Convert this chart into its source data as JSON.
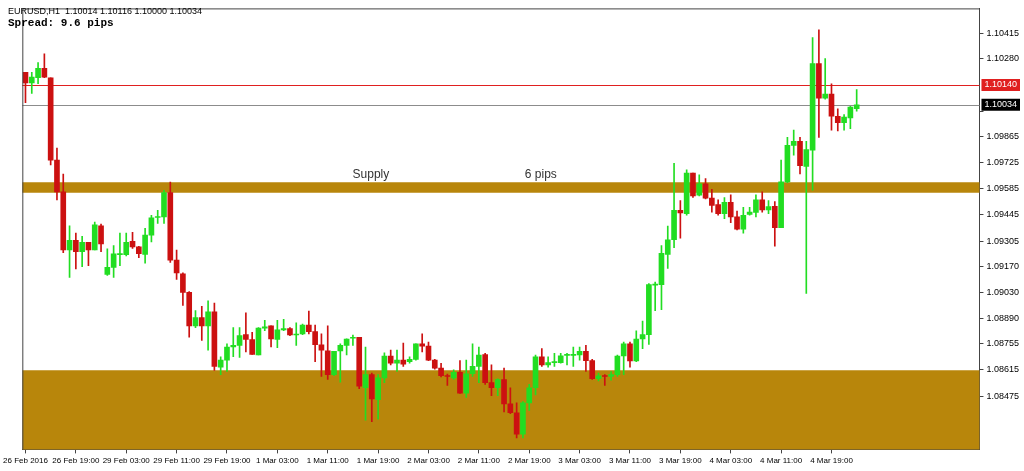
{
  "chart_data": {
    "type": "candlestick",
    "title": "EURUSD,H1  1.10014 1.10116 1.10000 1.10034",
    "subtitle": "Spread: 9.6 pips",
    "categories": [
      "26 Feb 2016",
      null,
      null,
      null,
      null,
      null,
      null,
      null,
      "26 Feb 19:00",
      null,
      null,
      null,
      null,
      null,
      null,
      null,
      "29 Feb 03:00",
      null,
      null,
      null,
      null,
      null,
      null,
      null,
      "29 Feb 11:00",
      null,
      null,
      null,
      null,
      null,
      null,
      null,
      "29 Feb 19:00",
      null,
      null,
      null,
      null,
      null,
      null,
      null,
      "1 Mar 03:00",
      null,
      null,
      null,
      null,
      null,
      null,
      null,
      "1 Mar 11:00",
      null,
      null,
      null,
      null,
      null,
      null,
      null,
      "1 Mar 19:00",
      null,
      null,
      null,
      null,
      null,
      null,
      null,
      "2 Mar 03:00",
      null,
      null,
      null,
      null,
      null,
      null,
      null,
      "2 Mar 11:00",
      null,
      null,
      null,
      null,
      null,
      null,
      null,
      "2 Mar 19:00",
      null,
      null,
      null,
      null,
      null,
      null,
      null,
      "3 Mar 03:00",
      null,
      null,
      null,
      null,
      null,
      null,
      null,
      "3 Mar 11:00",
      null,
      null,
      null,
      null,
      null,
      null,
      null,
      "3 Mar 19:00",
      null,
      null,
      null,
      null,
      null,
      null,
      null,
      "4 Mar 03:00",
      null,
      null,
      null,
      null,
      null,
      null,
      null,
      "4 Mar 11:00",
      null,
      null,
      null,
      null,
      null,
      null,
      null,
      "4 Mar 19:00",
      null,
      null,
      null,
      null,
      null,
      null,
      null,
      null,
      null,
      null,
      null,
      null,
      null,
      null,
      null,
      null,
      null,
      null,
      null,
      null,
      null,
      null,
      null
    ],
    "ohlc": [
      [
        1.10208,
        1.10208,
        1.10046,
        1.10151
      ],
      [
        1.10151,
        1.10208,
        1.10095,
        1.10182
      ],
      [
        1.10179,
        1.1026,
        1.10147,
        1.10229
      ],
      [
        1.10229,
        1.10307,
        1.10179,
        1.10182
      ],
      [
        1.10179,
        1.10179,
        1.09712,
        1.09738
      ],
      [
        1.09738,
        1.09803,
        1.09525,
        1.09568
      ],
      [
        1.09568,
        1.09664,
        1.09243,
        1.09257
      ],
      [
        1.09257,
        1.09387,
        1.0911,
        1.09309
      ],
      [
        1.09309,
        1.09347,
        1.09156,
        1.09248
      ],
      [
        1.09248,
        1.0933,
        1.09168,
        1.09298
      ],
      [
        1.09298,
        1.09298,
        1.09173,
        1.09257
      ],
      [
        1.09257,
        1.09406,
        1.09257,
        1.09392
      ],
      [
        1.09387,
        1.09396,
        1.09248,
        1.0929
      ],
      [
        1.09126,
        1.09263,
        1.09121,
        1.09164
      ],
      [
        1.09164,
        1.09281,
        1.0911,
        1.09237
      ],
      [
        1.09232,
        1.09347,
        1.09173,
        1.09234
      ],
      [
        1.09232,
        1.09347,
        1.09225,
        1.09298
      ],
      [
        1.09304,
        1.09352,
        1.09265,
        1.09274
      ],
      [
        1.09274,
        1.09277,
        1.09216,
        1.09237
      ],
      [
        1.09234,
        1.09373,
        1.09187,
        1.09337
      ],
      [
        1.09337,
        1.09443,
        1.093,
        1.09429
      ],
      [
        1.09431,
        1.09469,
        1.09399,
        1.09434
      ],
      [
        1.09434,
        1.09577,
        1.09399,
        1.09564
      ],
      [
        1.09564,
        1.0962,
        1.0919,
        1.09203
      ],
      [
        1.09203,
        1.09257,
        1.091,
        1.09135
      ],
      [
        1.0913,
        1.09135,
        1.08961,
        1.0903
      ],
      [
        1.0903,
        1.09034,
        1.0879,
        1.08851
      ],
      [
        1.08851,
        1.08933,
        1.08842,
        1.08895
      ],
      [
        1.08895,
        1.08955,
        1.08773,
        1.08851
      ],
      [
        1.08851,
        1.08985,
        1.08721,
        1.08926
      ],
      [
        1.08926,
        1.08973,
        1.08613,
        1.08634
      ],
      [
        1.0863,
        1.08686,
        1.0859,
        1.08668
      ],
      [
        1.08668,
        1.08755,
        1.08607,
        1.08738
      ],
      [
        1.08738,
        1.08842,
        1.08686,
        1.08747
      ],
      [
        1.08747,
        1.08842,
        1.08682,
        1.08799
      ],
      [
        1.08804,
        1.08921,
        1.08712,
        1.08778
      ],
      [
        1.08778,
        1.08816,
        1.08698,
        1.08698
      ],
      [
        1.08695,
        1.08842,
        1.08695,
        1.08839
      ],
      [
        1.08839,
        1.08881,
        1.08825,
        1.08846
      ],
      [
        1.08851,
        1.08851,
        1.08738,
        1.08781
      ],
      [
        1.08778,
        1.08881,
        1.08735,
        1.0883
      ],
      [
        1.0883,
        1.08886,
        1.08825,
        1.08837
      ],
      [
        1.08837,
        1.08842,
        1.08799,
        1.08802
      ],
      [
        1.08802,
        1.08868,
        1.08747,
        1.08806
      ],
      [
        1.08808,
        1.0886,
        1.08804,
        1.08855
      ],
      [
        1.08855,
        1.0893,
        1.08808,
        1.0882
      ],
      [
        1.0882,
        1.08855,
        1.0866,
        1.0875
      ],
      [
        1.0875,
        1.08808,
        1.08581,
        1.08721
      ],
      [
        1.08717,
        1.08851,
        1.08564,
        1.0859
      ],
      [
        1.0859,
        1.08715,
        1.08584,
        1.08715
      ],
      [
        1.08717,
        1.08755,
        1.0855,
        1.08747
      ],
      [
        1.08747,
        1.08782,
        1.08695,
        1.08781
      ],
      [
        1.08785,
        1.08802,
        1.08747,
        1.08788
      ],
      [
        1.0879,
        1.0879,
        1.08515,
        1.08529
      ],
      [
        1.0852,
        1.08738,
        1.08347,
        1.0859
      ],
      [
        1.0859,
        1.08599,
        1.08338,
        1.0846
      ],
      [
        1.08456,
        1.0859,
        1.08352,
        1.08573
      ],
      [
        1.08573,
        1.08707,
        1.08547,
        1.0869
      ],
      [
        1.0869,
        1.08721,
        1.08642,
        1.08651
      ],
      [
        1.08651,
        1.08721,
        1.08607,
        1.08668
      ],
      [
        1.08668,
        1.08759,
        1.08634,
        1.08646
      ],
      [
        1.0866,
        1.08686,
        1.08651,
        1.08672
      ],
      [
        1.08672,
        1.08755,
        1.08668,
        1.08755
      ],
      [
        1.08755,
        1.08808,
        1.08712,
        1.08743
      ],
      [
        1.08743,
        1.08764,
        1.08665,
        1.08668
      ],
      [
        1.08668,
        1.08672,
        1.0862,
        1.08625
      ],
      [
        1.08625,
        1.08651,
        1.08578,
        1.08584
      ],
      [
        1.08584,
        1.08593,
        1.08533,
        1.0858
      ],
      [
        1.08573,
        1.08616,
        1.08564,
        1.08603
      ],
      [
        1.08603,
        1.08665,
        1.08489,
        1.08491
      ],
      [
        1.08491,
        1.08668,
        1.08468,
        1.08595
      ],
      [
        1.08595,
        1.08755,
        1.08581,
        1.08634
      ],
      [
        1.08634,
        1.08738,
        1.08547,
        1.08695
      ],
      [
        1.08698,
        1.08704,
        1.08538,
        1.08547
      ],
      [
        1.08547,
        1.08642,
        1.08477,
        1.0852
      ],
      [
        1.0852,
        1.08568,
        1.08477,
        1.08564
      ],
      [
        1.08564,
        1.08625,
        1.0839,
        1.08434
      ],
      [
        1.08434,
        1.0852,
        1.08381,
        1.08386
      ],
      [
        1.08386,
        1.08439,
        1.08251,
        1.08272
      ],
      [
        1.08272,
        1.08446,
        1.08251,
        1.08439
      ],
      [
        1.08439,
        1.08538,
        1.08399,
        1.0852
      ],
      [
        1.0852,
        1.08695,
        1.08481,
        1.08686
      ],
      [
        1.08686,
        1.08729,
        1.08634,
        1.08642
      ],
      [
        1.08642,
        1.08686,
        1.0863,
        1.08654
      ],
      [
        1.08654,
        1.08704,
        1.08634,
        1.08656
      ],
      [
        1.08654,
        1.08704,
        1.08651,
        1.08691
      ],
      [
        1.08693,
        1.08704,
        1.08642,
        1.08696
      ],
      [
        1.08693,
        1.08738,
        1.08634,
        1.08696
      ],
      [
        1.08695,
        1.08738,
        1.08668,
        1.08715
      ],
      [
        1.08715,
        1.08747,
        1.08607,
        1.08665
      ],
      [
        1.08665,
        1.08672,
        1.08564,
        1.08568
      ],
      [
        1.08568,
        1.08599,
        1.08556,
        1.08584
      ],
      [
        1.08582,
        1.0859,
        1.08533,
        1.0858
      ],
      [
        1.08581,
        1.08607,
        1.08561,
        1.0859
      ],
      [
        1.0859,
        1.08695,
        1.08581,
        1.0869
      ],
      [
        1.0869,
        1.08764,
        1.0859,
        1.08755
      ],
      [
        1.08755,
        1.08764,
        1.0863,
        1.08663
      ],
      [
        1.08663,
        1.08825,
        1.0866,
        1.08781
      ],
      [
        1.08781,
        1.08877,
        1.08729,
        1.08804
      ],
      [
        1.08804,
        1.09077,
        1.08752,
        1.09072
      ],
      [
        1.09069,
        1.09086,
        1.08933,
        1.09074
      ],
      [
        1.09072,
        1.09281,
        1.08938,
        1.09239
      ],
      [
        1.09234,
        1.09385,
        1.09159,
        1.09312
      ],
      [
        1.09312,
        1.09721,
        1.09269,
        1.09469
      ],
      [
        1.09469,
        1.09521,
        1.09321,
        1.09455
      ],
      [
        1.09451,
        1.09686,
        1.09443,
        1.09669
      ],
      [
        1.09669,
        1.09669,
        1.09538,
        1.09547
      ],
      [
        1.09551,
        1.0966,
        1.09547,
        1.09611
      ],
      [
        1.09611,
        1.09639,
        1.0953,
        1.09535
      ],
      [
        1.09535,
        1.09582,
        1.0946,
        1.09495
      ],
      [
        1.095,
        1.09525,
        1.09443,
        1.09451
      ],
      [
        1.09451,
        1.09538,
        1.09425,
        1.09512
      ],
      [
        1.09512,
        1.09552,
        1.09403,
        1.09434
      ],
      [
        1.09434,
        1.09465,
        1.09364,
        1.09368
      ],
      [
        1.09368,
        1.09486,
        1.09347,
        1.09443
      ],
      [
        1.09448,
        1.09486,
        1.09443,
        1.0946
      ],
      [
        1.09458,
        1.09552,
        1.09434,
        1.09525
      ],
      [
        1.09525,
        1.09568,
        1.0946,
        1.09472
      ],
      [
        1.09472,
        1.09521,
        1.09451,
        1.0949
      ],
      [
        1.09491,
        1.09516,
        1.09277,
        1.09377
      ],
      [
        1.09377,
        1.09738,
        1.09377,
        1.09622
      ],
      [
        1.09622,
        1.0986,
        1.09617,
        1.09817
      ],
      [
        1.09817,
        1.09899,
        1.09765,
        1.09839
      ],
      [
        1.09839,
        1.0986,
        1.09664,
        1.09709
      ],
      [
        1.09705,
        1.09838,
        1.09025,
        1.09795
      ],
      [
        1.09791,
        1.10394,
        1.09577,
        1.10255
      ],
      [
        1.10255,
        1.10435,
        1.0986,
        1.10069
      ],
      [
        1.10069,
        1.10281,
        1.10064,
        1.10092
      ],
      [
        1.10092,
        1.10147,
        1.09899,
        1.09973
      ],
      [
        1.09973,
        1.10012,
        1.09895,
        1.09938
      ],
      [
        1.09938,
        1.09982,
        1.09899,
        1.09968
      ],
      [
        1.09964,
        1.10026,
        1.09907,
        1.10022
      ],
      [
        1.10014,
        1.10116,
        1.1,
        1.10034
      ],
      null,
      null,
      null,
      null,
      null,
      null,
      null,
      null,
      null,
      null,
      null,
      null,
      null,
      null,
      null,
      null,
      null,
      null,
      null
    ],
    "colors": [
      "#cc1111",
      "#22dd22",
      "#22dd22",
      "#cc1111",
      "#cc1111",
      "#cc1111",
      "#cc1111",
      "#22dd22",
      "#cc1111",
      "#22dd22",
      "#cc1111",
      "#22dd22",
      "#cc1111",
      "#22dd22",
      "#22dd22",
      "#22dd22",
      "#22dd22",
      "#cc1111",
      "#cc1111",
      "#22dd22",
      "#22dd22",
      "#22dd22",
      "#22dd22",
      "#cc1111",
      "#cc1111",
      "#cc1111",
      "#cc1111",
      "#22dd22",
      "#cc1111",
      "#22dd22",
      "#cc1111",
      "#22dd22",
      "#22dd22",
      "#22dd22",
      "#22dd22",
      "#cc1111",
      "#cc1111",
      "#22dd22",
      "#22dd22",
      "#cc1111",
      "#22dd22",
      "#22dd22",
      "#cc1111",
      "#22dd22",
      "#22dd22",
      "#cc1111",
      "#cc1111",
      "#cc1111",
      "#cc1111",
      "#22dd22",
      "#22dd22",
      "#22dd22",
      "#22dd22",
      "#cc1111",
      "#22dd22",
      "#cc1111",
      "#22dd22",
      "#22dd22",
      "#cc1111",
      "#22dd22",
      "#cc1111",
      "#22dd22",
      "#22dd22",
      "#cc1111",
      "#cc1111",
      "#cc1111",
      "#cc1111",
      "#cc1111",
      "#22dd22",
      "#cc1111",
      "#22dd22",
      "#22dd22",
      "#22dd22",
      "#cc1111",
      "#cc1111",
      "#22dd22",
      "#cc1111",
      "#cc1111",
      "#cc1111",
      "#22dd22",
      "#22dd22",
      "#22dd22",
      "#cc1111",
      "#22dd22",
      "#22dd22",
      "#22dd22",
      "#22dd22",
      "#22dd22",
      "#22dd22",
      "#cc1111",
      "#cc1111",
      "#22dd22",
      "#cc1111",
      "#22dd22",
      "#22dd22",
      "#22dd22",
      "#cc1111",
      "#22dd22",
      "#22dd22",
      "#22dd22",
      "#22dd22",
      "#22dd22",
      "#22dd22",
      "#22dd22",
      "#cc1111",
      "#22dd22",
      "#cc1111",
      "#22dd22",
      "#cc1111",
      "#cc1111",
      "#cc1111",
      "#22dd22",
      "#cc1111",
      "#cc1111",
      "#22dd22",
      "#22dd22",
      "#22dd22",
      "#cc1111",
      "#22dd22",
      "#cc1111",
      "#22dd22",
      "#22dd22",
      "#22dd22",
      "#cc1111",
      "#22dd22",
      "#22dd22",
      "#cc1111",
      "#22dd22",
      "#cc1111",
      "#cc1111",
      "#22dd22",
      "#22dd22",
      "#22dd22",
      null,
      null,
      null,
      null,
      null,
      null,
      null,
      null,
      null,
      null,
      null,
      null,
      null,
      null,
      null,
      null,
      null,
      null,
      null
    ],
    "ylim": [
      1.0819,
      1.1055
    ],
    "yticks": [
      1.10415,
      {
        "value": 1.1028,
        "label": "1.10280"
      },
      {
        "value": 1.1,
        "label": null
      },
      1.09865,
      1.09725,
      1.09585,
      1.09445,
      1.09305,
      {
        "value": 1.0917,
        "label": "1.09170"
      },
      {
        "value": 1.0903,
        "label": "1.09030"
      },
      {
        "value": 1.0889,
        "label": "1.08890"
      },
      1.08755,
      1.08615,
      1.08475
    ],
    "ref_lines": [
      {
        "axis": "y",
        "value": 1.1014,
        "label": "1.10140",
        "color": "#e02020"
      },
      {
        "axis": "y",
        "value": 1.10034,
        "label": "1.10034",
        "color": "#8c8c8c"
      }
    ],
    "bands": [
      {
        "axis": "y",
        "from": 1.09564,
        "to": 1.0962,
        "label": "Supply",
        "color": "#b8860b"
      },
      {
        "axis": "y",
        "from": 1.0819,
        "to": 1.08613,
        "color": "#b8860b"
      }
    ],
    "annotations": [
      "6 pips"
    ]
  }
}
